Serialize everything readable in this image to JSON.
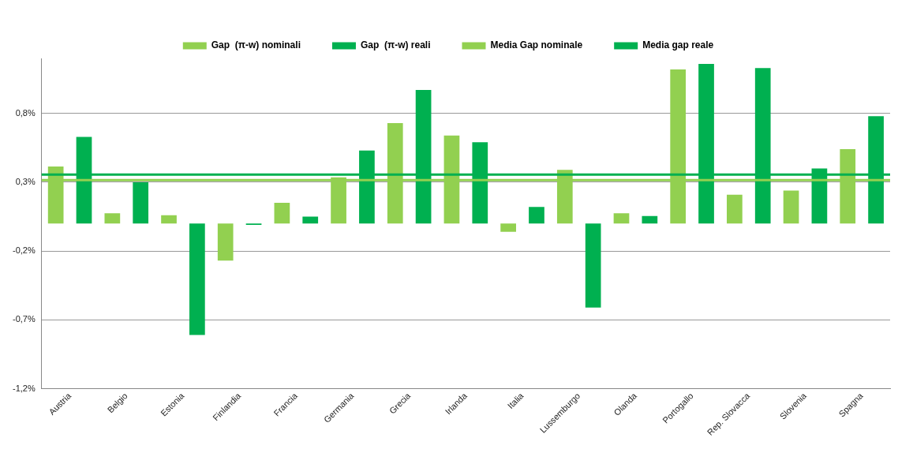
{
  "chart_data": {
    "type": "bar",
    "categories": [
      "Austria",
      "Belgio",
      "Estonia",
      "Finlandia",
      "Francia",
      "Germania",
      "Grecia",
      "Irlanda",
      "Italia",
      "Lussemburgo",
      "Olanda",
      "Portogallo",
      "Rep. Slovacca",
      "Slovenia",
      "Spagna"
    ],
    "series": [
      {
        "name": "Gap  (π-w) nominali",
        "color": "#92d050",
        "values": [
          0.415,
          0.075,
          0.06,
          -0.27,
          0.15,
          0.335,
          0.73,
          0.64,
          -0.06,
          0.39,
          0.075,
          1.12,
          0.21,
          0.24,
          0.54
        ]
      },
      {
        "name": "Gap  (π-w) reali",
        "color": "#00b050",
        "values": [
          0.63,
          0.3,
          -0.81,
          -0.01,
          0.05,
          0.53,
          0.97,
          0.59,
          0.12,
          -0.61,
          0.055,
          1.16,
          1.13,
          0.4,
          0.78
        ]
      }
    ],
    "ref_lines": [
      {
        "axis": "y",
        "value": 0.315,
        "label": "Media Gap nominale",
        "color": "#92d050"
      },
      {
        "axis": "y",
        "value": 0.355,
        "label": "Media gap reale",
        "color": "#00b050"
      }
    ],
    "ylim": [
      -1.2,
      1.2
    ],
    "yticks": [
      {
        "value": -1.2,
        "label": "-1,2%"
      },
      {
        "value": -0.7,
        "label": "-0,7%"
      },
      {
        "value": -0.2,
        "label": "-0,2%"
      },
      {
        "value": 0.3,
        "label": "0,3%"
      },
      {
        "value": 0.8,
        "label": "0,8%"
      }
    ],
    "grid": "y",
    "legend": "top"
  }
}
